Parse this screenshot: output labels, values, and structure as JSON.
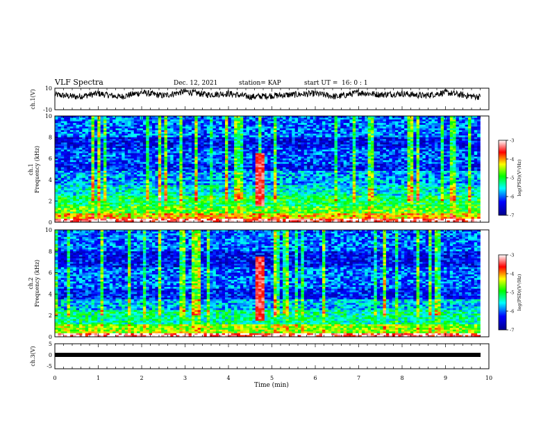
{
  "header": {
    "title": "VLF Spectra",
    "date": "Dec. 12, 2021",
    "station": "station= KAP",
    "start_label": "start  UT =",
    "start_time": "16: 0  : 1"
  },
  "chart_data": [
    {
      "type": "line",
      "panel": "ch1-waveform",
      "ylabel": "ch.1(V)",
      "ylim": [
        -10,
        10
      ],
      "yticks": [
        "10",
        "-10"
      ],
      "xlim": [
        0,
        10
      ],
      "description_series": "continuous noisy voltage trace, roughly between 0 and 10 V",
      "x": [
        0,
        0.5,
        1,
        1.5,
        2,
        2.5,
        3,
        3.5,
        4,
        4.5,
        5,
        5.5,
        6,
        6.5,
        7,
        7.5,
        8,
        8.5,
        9,
        9.5,
        9.8
      ],
      "y": [
        4,
        2,
        5,
        2,
        6,
        3,
        7,
        4,
        5,
        2,
        3,
        4,
        5,
        2,
        6,
        4,
        5,
        3,
        6,
        3,
        2
      ]
    },
    {
      "type": "heatmap",
      "panel": "ch1-spectrogram",
      "ylabel": "ch.1\nFrequency (kHz)",
      "xlim": [
        0,
        10
      ],
      "ylim": [
        0,
        10
      ],
      "yticks": [
        "0",
        "2",
        "4",
        "6",
        "8",
        "10"
      ],
      "colorbar": {
        "label": "log(PSD)(V²/Hz)",
        "range": [
          -7,
          -3
        ],
        "ticks": [
          "-3",
          "-4",
          "-5",
          "-6",
          "-7"
        ]
      },
      "bands": [
        {
          "from": 0,
          "to": 0.3,
          "log_psd": -3.3
        },
        {
          "from": 0.3,
          "to": 0.8,
          "log_psd": -4.2
        },
        {
          "from": 0.8,
          "to": 1.5,
          "log_psd": -4.8
        },
        {
          "from": 1.5,
          "to": 2.5,
          "log_psd": -5.1
        },
        {
          "from": 2.5,
          "to": 3.5,
          "log_psd": -5.5
        },
        {
          "from": 3.5,
          "to": 4.8,
          "log_psd": -5.8
        },
        {
          "from": 4.8,
          "to": 5.5,
          "log_psd": -6.3
        },
        {
          "from": 5.5,
          "to": 7.0,
          "log_psd": -6.1
        },
        {
          "from": 7.0,
          "to": 8.0,
          "log_psd": -6.4
        },
        {
          "from": 8.0,
          "to": 10.0,
          "log_psd": -6.0
        }
      ],
      "burst": {
        "time_from": 4.65,
        "time_to": 4.85,
        "freq_from": 1.5,
        "freq_to": 6.5,
        "log_psd": -3.5
      }
    },
    {
      "type": "heatmap",
      "panel": "ch2-spectrogram",
      "ylabel": "ch.2\nFrequency (kHz)",
      "xlim": [
        0,
        10
      ],
      "ylim": [
        0,
        10
      ],
      "yticks": [
        "0",
        "2",
        "4",
        "6",
        "8",
        "10"
      ],
      "colorbar": {
        "label": "log(PSD)(V²/Hz)",
        "range": [
          -7,
          -3
        ],
        "ticks": [
          "-3",
          "-4",
          "-5",
          "-6",
          "-7"
        ]
      },
      "bands": [
        {
          "from": 0,
          "to": 0.3,
          "log_psd": -3.3
        },
        {
          "from": 0.3,
          "to": 1.2,
          "log_psd": -4.6
        },
        {
          "from": 1.2,
          "to": 2.5,
          "log_psd": -5.3
        },
        {
          "from": 2.5,
          "to": 3.5,
          "log_psd": -5.7
        },
        {
          "from": 3.5,
          "to": 4.5,
          "log_psd": -6.3
        },
        {
          "from": 4.5,
          "to": 6.5,
          "log_psd": -6.0
        },
        {
          "from": 6.5,
          "to": 8.0,
          "log_psd": -6.4
        },
        {
          "from": 8.0,
          "to": 10.0,
          "log_psd": -6.0
        }
      ],
      "burst": {
        "time_from": 4.65,
        "time_to": 4.85,
        "freq_from": 1.5,
        "freq_to": 7.5,
        "log_psd": -3.5
      }
    },
    {
      "type": "line",
      "panel": "ch3-waveform",
      "ylabel": "ch.3(V)",
      "ylim": [
        -5,
        5
      ],
      "yticks": [
        "5",
        "0",
        "-5"
      ],
      "xlim": [
        0,
        10
      ],
      "x": [
        0,
        9.8
      ],
      "y": [
        0,
        0
      ],
      "xlabel": "Time  (min)",
      "xticks": [
        "0",
        "1",
        "2",
        "3",
        "4",
        "5",
        "6",
        "7",
        "8",
        "9",
        "10"
      ]
    }
  ]
}
